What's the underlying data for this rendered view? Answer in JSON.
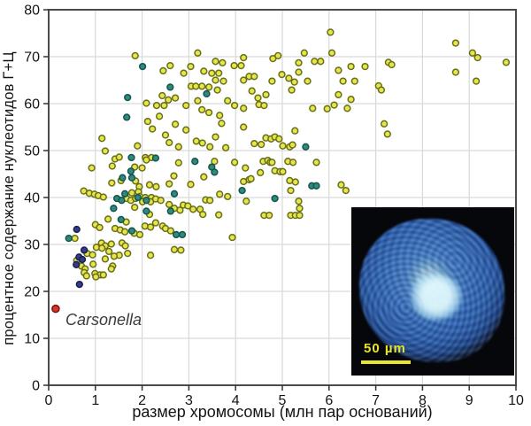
{
  "figure": {
    "x_title": "размер хромосомы (млн пар оснований)",
    "y_title": "процентное содержание нуклеотидов Г+Ц",
    "annotation_label": "Carsonella",
    "inset": {
      "scale_label": "50 µm"
    }
  },
  "chart_data": {
    "type": "scatter",
    "title": "",
    "xlabel": "размер хромосомы (млн пар оснований)",
    "ylabel": "процентное содержание нуклеотидов Г+Ц",
    "xlim": [
      0,
      10
    ],
    "ylim": [
      0,
      80
    ],
    "x_ticks": [
      0,
      1,
      2,
      3,
      4,
      5,
      6,
      7,
      8,
      9,
      10
    ],
    "y_ticks": [
      0,
      10,
      20,
      30,
      40,
      50,
      60,
      70,
      80
    ],
    "grid": true,
    "frame_color": "#4b4b4b",
    "grid_color": "#d9d9d9",
    "annotations": [
      {
        "text": "Carsonella",
        "x": 0.38,
        "y": 15.6
      }
    ],
    "series": [
      {
        "name": "yellow-genomes",
        "fill": "#e9e44a",
        "edge": "#66701a",
        "points": [
          [
            1.85,
            70.2
          ],
          [
            2.45,
            67.0
          ],
          [
            2.6,
            68.1
          ],
          [
            2.89,
            66.5
          ],
          [
            3.04,
            67.9
          ],
          [
            3.19,
            70.8
          ],
          [
            3.05,
            63.7
          ],
          [
            3.15,
            63.7
          ],
          [
            3.28,
            63.7
          ],
          [
            6.03,
            75.2
          ],
          [
            6.06,
            70.8
          ],
          [
            5.47,
            70.8
          ],
          [
            4.17,
            69.8
          ],
          [
            4.8,
            69.6
          ],
          [
            4.91,
            70.2
          ],
          [
            5.69,
            69.0
          ],
          [
            5.82,
            69.0
          ],
          [
            5.35,
            68.7
          ],
          [
            3.57,
            69.0
          ],
          [
            3.72,
            68.7
          ],
          [
            3.97,
            68.1
          ],
          [
            4.12,
            68.1
          ],
          [
            3.32,
            66.9
          ],
          [
            3.49,
            66.5
          ],
          [
            3.64,
            66.5
          ],
          [
            3.57,
            65.0
          ],
          [
            4.29,
            65.8
          ],
          [
            4.4,
            65.8
          ],
          [
            4.17,
            65.0
          ],
          [
            4.78,
            64.8
          ],
          [
            4.99,
            66.2
          ],
          [
            5.14,
            65.4
          ],
          [
            5.26,
            64.6
          ],
          [
            5.35,
            66.7
          ],
          [
            5.54,
            64.8
          ],
          [
            3.74,
            64.8
          ],
          [
            3.43,
            63.5
          ],
          [
            3.61,
            62.9
          ],
          [
            4.35,
            62.7
          ],
          [
            6.2,
            67.1
          ],
          [
            6.3,
            64.8
          ],
          [
            6.55,
            64.8
          ],
          [
            6.47,
            67.9
          ],
          [
            8.71,
            72.9
          ],
          [
            9.07,
            70.8
          ],
          [
            9.18,
            69.8
          ],
          [
            9.79,
            68.8
          ],
          [
            6.77,
            67.9
          ],
          [
            7.27,
            68.8
          ],
          [
            7.34,
            68.3
          ],
          [
            8.71,
            66.7
          ],
          [
            9.15,
            64.8
          ],
          [
            7.06,
            63.8
          ],
          [
            7.12,
            62.9
          ],
          [
            2.43,
            61.7
          ],
          [
            2.56,
            60.8
          ],
          [
            2.31,
            59.6
          ],
          [
            2.47,
            59.6
          ],
          [
            2.71,
            61.2
          ],
          [
            2.09,
            60.1
          ],
          [
            2.94,
            59.6
          ],
          [
            3.19,
            60.6
          ],
          [
            3.28,
            58.7
          ],
          [
            4.48,
            61.2
          ],
          [
            4.65,
            61.9
          ],
          [
            5.2,
            62.9
          ],
          [
            6.2,
            61.9
          ],
          [
            6.47,
            60.9
          ],
          [
            3.83,
            60.6
          ],
          [
            3.98,
            59.6
          ],
          [
            4.17,
            59.0
          ],
          [
            4.5,
            59.8
          ],
          [
            4.61,
            59.6
          ],
          [
            5.65,
            59.0
          ],
          [
            5.96,
            58.9
          ],
          [
            6.11,
            59.7
          ],
          [
            6.39,
            59.0
          ],
          [
            2.12,
            56.2
          ],
          [
            2.22,
            54.6
          ],
          [
            2.37,
            57.3
          ],
          [
            2.71,
            55.6
          ],
          [
            2.94,
            54.4
          ],
          [
            3.43,
            58.1
          ],
          [
            3.66,
            57.5
          ],
          [
            3.7,
            55.8
          ],
          [
            4.17,
            55.0
          ],
          [
            5.27,
            54.2
          ],
          [
            7.25,
            53.5
          ],
          [
            7.18,
            55.7
          ],
          [
            1.14,
            52.6
          ],
          [
            3.57,
            52.9
          ],
          [
            2.5,
            53.3
          ],
          [
            3.16,
            52.0
          ],
          [
            4.65,
            52.7
          ],
          [
            4.76,
            52.5
          ],
          [
            4.84,
            52.9
          ],
          [
            4.93,
            52.5
          ],
          [
            1.9,
            51.0
          ],
          [
            2.58,
            51.7
          ],
          [
            2.78,
            50.8
          ],
          [
            1.21,
            49.9
          ],
          [
            1.42,
            48.2
          ],
          [
            1.51,
            48.6
          ],
          [
            3.29,
            51.6
          ],
          [
            3.45,
            50.8
          ],
          [
            3.79,
            50.6
          ],
          [
            4.4,
            51.5
          ],
          [
            4.55,
            51.3
          ],
          [
            5.01,
            51.0
          ],
          [
            5.16,
            50.8
          ],
          [
            5.22,
            51.2
          ],
          [
            2.07,
            48.5
          ],
          [
            2.2,
            48.5
          ],
          [
            2.09,
            48.0
          ],
          [
            2.78,
            47.4
          ],
          [
            0.92,
            46.3
          ],
          [
            1.36,
            46.7
          ],
          [
            1.84,
            46.5
          ],
          [
            2.0,
            46.3
          ],
          [
            1.35,
            43.1
          ],
          [
            1.55,
            43.6
          ],
          [
            1.86,
            43.5
          ],
          [
            1.94,
            42.3
          ],
          [
            2.16,
            42.7
          ],
          [
            2.3,
            42.3
          ],
          [
            2.58,
            42.9
          ],
          [
            2.68,
            44.6
          ],
          [
            3.04,
            42.8
          ],
          [
            3.98,
            47.5
          ],
          [
            4.59,
            47.7
          ],
          [
            4.69,
            47.9
          ],
          [
            4.74,
            47.5
          ],
          [
            4.78,
            47.5
          ],
          [
            5.12,
            47.7
          ],
          [
            5.23,
            47.5
          ],
          [
            5.73,
            47.5
          ],
          [
            3.55,
            47.7
          ],
          [
            4.21,
            46.3
          ],
          [
            4.53,
            45.3
          ],
          [
            4.84,
            45.7
          ],
          [
            4.95,
            45.5
          ],
          [
            5.01,
            45.5
          ],
          [
            4.17,
            43.4
          ],
          [
            4.29,
            43.8
          ],
          [
            4.33,
            44.0
          ],
          [
            5.16,
            43.6
          ],
          [
            5.28,
            43.3
          ],
          [
            6.26,
            42.7
          ],
          [
            6.36,
            41.5
          ],
          [
            3.32,
            44.4
          ],
          [
            0.75,
            41.4
          ],
          [
            0.87,
            40.9
          ],
          [
            0.98,
            40.7
          ],
          [
            1.06,
            40.4
          ],
          [
            1.17,
            40.1
          ],
          [
            1.78,
            41.0
          ],
          [
            1.92,
            41.2
          ],
          [
            1.95,
            40.2
          ],
          [
            2.07,
            40.0
          ],
          [
            2.2,
            40.0
          ],
          [
            1.67,
            39.8
          ],
          [
            1.76,
            39.4
          ],
          [
            1.86,
            39.8
          ],
          [
            2.01,
            39.1
          ],
          [
            2.18,
            39.1
          ],
          [
            2.29,
            39.7
          ],
          [
            2.4,
            39.4
          ],
          [
            2.58,
            38.5
          ],
          [
            2.69,
            37.7
          ],
          [
            2.81,
            37.3
          ],
          [
            2.88,
            38.4
          ],
          [
            2.98,
            38.2
          ],
          [
            3.09,
            37.5
          ],
          [
            3.24,
            37.5
          ],
          [
            3.3,
            36.4
          ],
          [
            2.16,
            36.4
          ],
          [
            1.84,
            37.9
          ],
          [
            3.36,
            39.5
          ],
          [
            3.45,
            39.4
          ],
          [
            3.66,
            40.7
          ],
          [
            3.83,
            40.2
          ],
          [
            4.23,
            39.2
          ],
          [
            5.35,
            39.2
          ],
          [
            5.37,
            37.7
          ],
          [
            5.18,
            41.5
          ],
          [
            3.64,
            36.3
          ],
          [
            4.61,
            36.2
          ],
          [
            4.72,
            36.2
          ],
          [
            5.18,
            36.2
          ],
          [
            5.28,
            36.2
          ],
          [
            5.37,
            36.2
          ],
          [
            0.56,
            31.3
          ],
          [
            1.0,
            34.2
          ],
          [
            1.09,
            33.6
          ],
          [
            1.27,
            35.4
          ],
          [
            1.66,
            34.8
          ],
          [
            1.42,
            33.4
          ],
          [
            1.53,
            33.1
          ],
          [
            1.63,
            32.7
          ],
          [
            1.83,
            32.4
          ],
          [
            1.95,
            32.1
          ],
          [
            2.06,
            33.9
          ],
          [
            2.18,
            33.7
          ],
          [
            2.29,
            34.6
          ],
          [
            2.44,
            33.9
          ],
          [
            2.5,
            33.4
          ],
          [
            2.61,
            32.9
          ],
          [
            1.13,
            30.3
          ],
          [
            1.21,
            29.7
          ],
          [
            1.34,
            30.1
          ],
          [
            1.57,
            30.3
          ],
          [
            1.64,
            29.7
          ],
          [
            0.82,
            28.1
          ],
          [
            0.94,
            27.8
          ],
          [
            1.51,
            27.7
          ],
          [
            1.69,
            28.1
          ],
          [
            2.18,
            27.7
          ],
          [
            2.69,
            28.9
          ],
          [
            2.83,
            28.8
          ],
          [
            3.93,
            31.5
          ],
          [
            1.02,
            29.4
          ],
          [
            1.14,
            29.2
          ],
          [
            1.29,
            28.5
          ],
          [
            1.4,
            27.5
          ],
          [
            1.21,
            26.9
          ],
          [
            1.37,
            25.4
          ],
          [
            0.7,
            25.4
          ],
          [
            0.78,
            24.8
          ],
          [
            0.6,
            26.6
          ],
          [
            0.95,
            25.8
          ],
          [
            0.99,
            23.8
          ],
          [
            1.1,
            23.5
          ],
          [
            0.76,
            24.0
          ],
          [
            0.81,
            23.3
          ],
          [
            1.01,
            23.1
          ],
          [
            1.17,
            23.5
          ],
          [
            1.34,
            24.8
          ]
        ]
      },
      {
        "name": "teal-genomes",
        "fill": "#2f8a7c",
        "edge": "#14544c",
        "points": [
          [
            2.01,
            67.9
          ],
          [
            2.6,
            63.5
          ],
          [
            1.69,
            61.3
          ],
          [
            1.67,
            57.1
          ],
          [
            3.38,
            62.1
          ],
          [
            2.29,
            48.4
          ],
          [
            3.13,
            47.7
          ],
          [
            1.77,
            48.5
          ],
          [
            1.76,
            45.6
          ],
          [
            1.78,
            44.2
          ],
          [
            1.58,
            44.2
          ],
          [
            3.49,
            46.5
          ],
          [
            3.55,
            45.4
          ],
          [
            1.63,
            40.8
          ],
          [
            1.46,
            39.8
          ],
          [
            1.56,
            39.4
          ],
          [
            1.91,
            40.0
          ],
          [
            2.09,
            39.4
          ],
          [
            1.39,
            37.7
          ],
          [
            2.09,
            37.1
          ],
          [
            2.61,
            37.1
          ],
          [
            2.69,
            40.8
          ],
          [
            4.14,
            41.5
          ],
          [
            4.84,
            39.8
          ],
          [
            5.63,
            42.5
          ],
          [
            5.73,
            42.5
          ],
          [
            5.5,
            50.8
          ],
          [
            1.55,
            35.3
          ],
          [
            1.78,
            32.9
          ],
          [
            2.73,
            32.1
          ],
          [
            2.86,
            32.1
          ],
          [
            0.43,
            31.3
          ]
        ]
      },
      {
        "name": "navy-genomes",
        "fill": "#333b8a",
        "edge": "#191f4e",
        "points": [
          [
            0.6,
            33.2
          ],
          [
            0.76,
            28.8
          ],
          [
            0.65,
            27.3
          ],
          [
            0.72,
            26.8
          ],
          [
            0.59,
            25.7
          ],
          [
            0.66,
            21.5
          ]
        ]
      },
      {
        "name": "carsonella-red",
        "fill": "#d8352b",
        "edge": "#7a100c",
        "points": [
          [
            0.15,
            16.3
          ]
        ]
      }
    ]
  }
}
